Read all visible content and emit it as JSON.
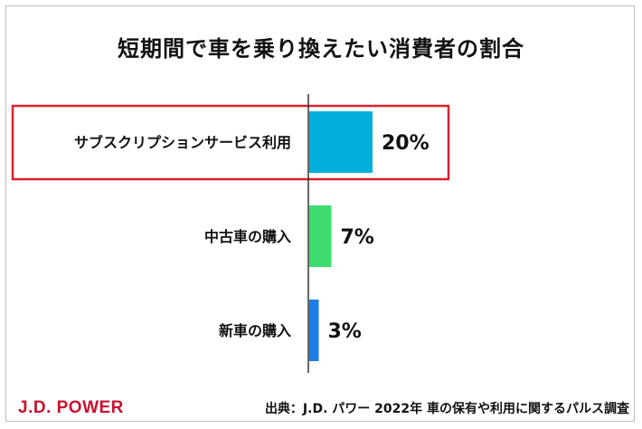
{
  "chart_data": {
    "type": "bar",
    "orientation": "horizontal",
    "title": "短期間で車を乗り換えたい消費者の割合",
    "categories": [
      "サブスクリプションサービス利用",
      "中古車の購入",
      "新車の購入"
    ],
    "values": [
      20,
      7,
      3
    ],
    "value_labels": [
      "20%",
      "7%",
      "3%"
    ],
    "colors": [
      "#00aedb",
      "#3ddc6e",
      "#1a7de8"
    ],
    "highlight_category": "サブスクリプションサービス利用",
    "highlight_color": "#d9232d",
    "xlim": [
      0,
      20
    ],
    "grid": false,
    "legend": "none"
  },
  "footer": {
    "brand": "J.D. POWER",
    "source": "出典：J.D. パワー 2022年 車の保有や利用に関するパルス調査"
  }
}
